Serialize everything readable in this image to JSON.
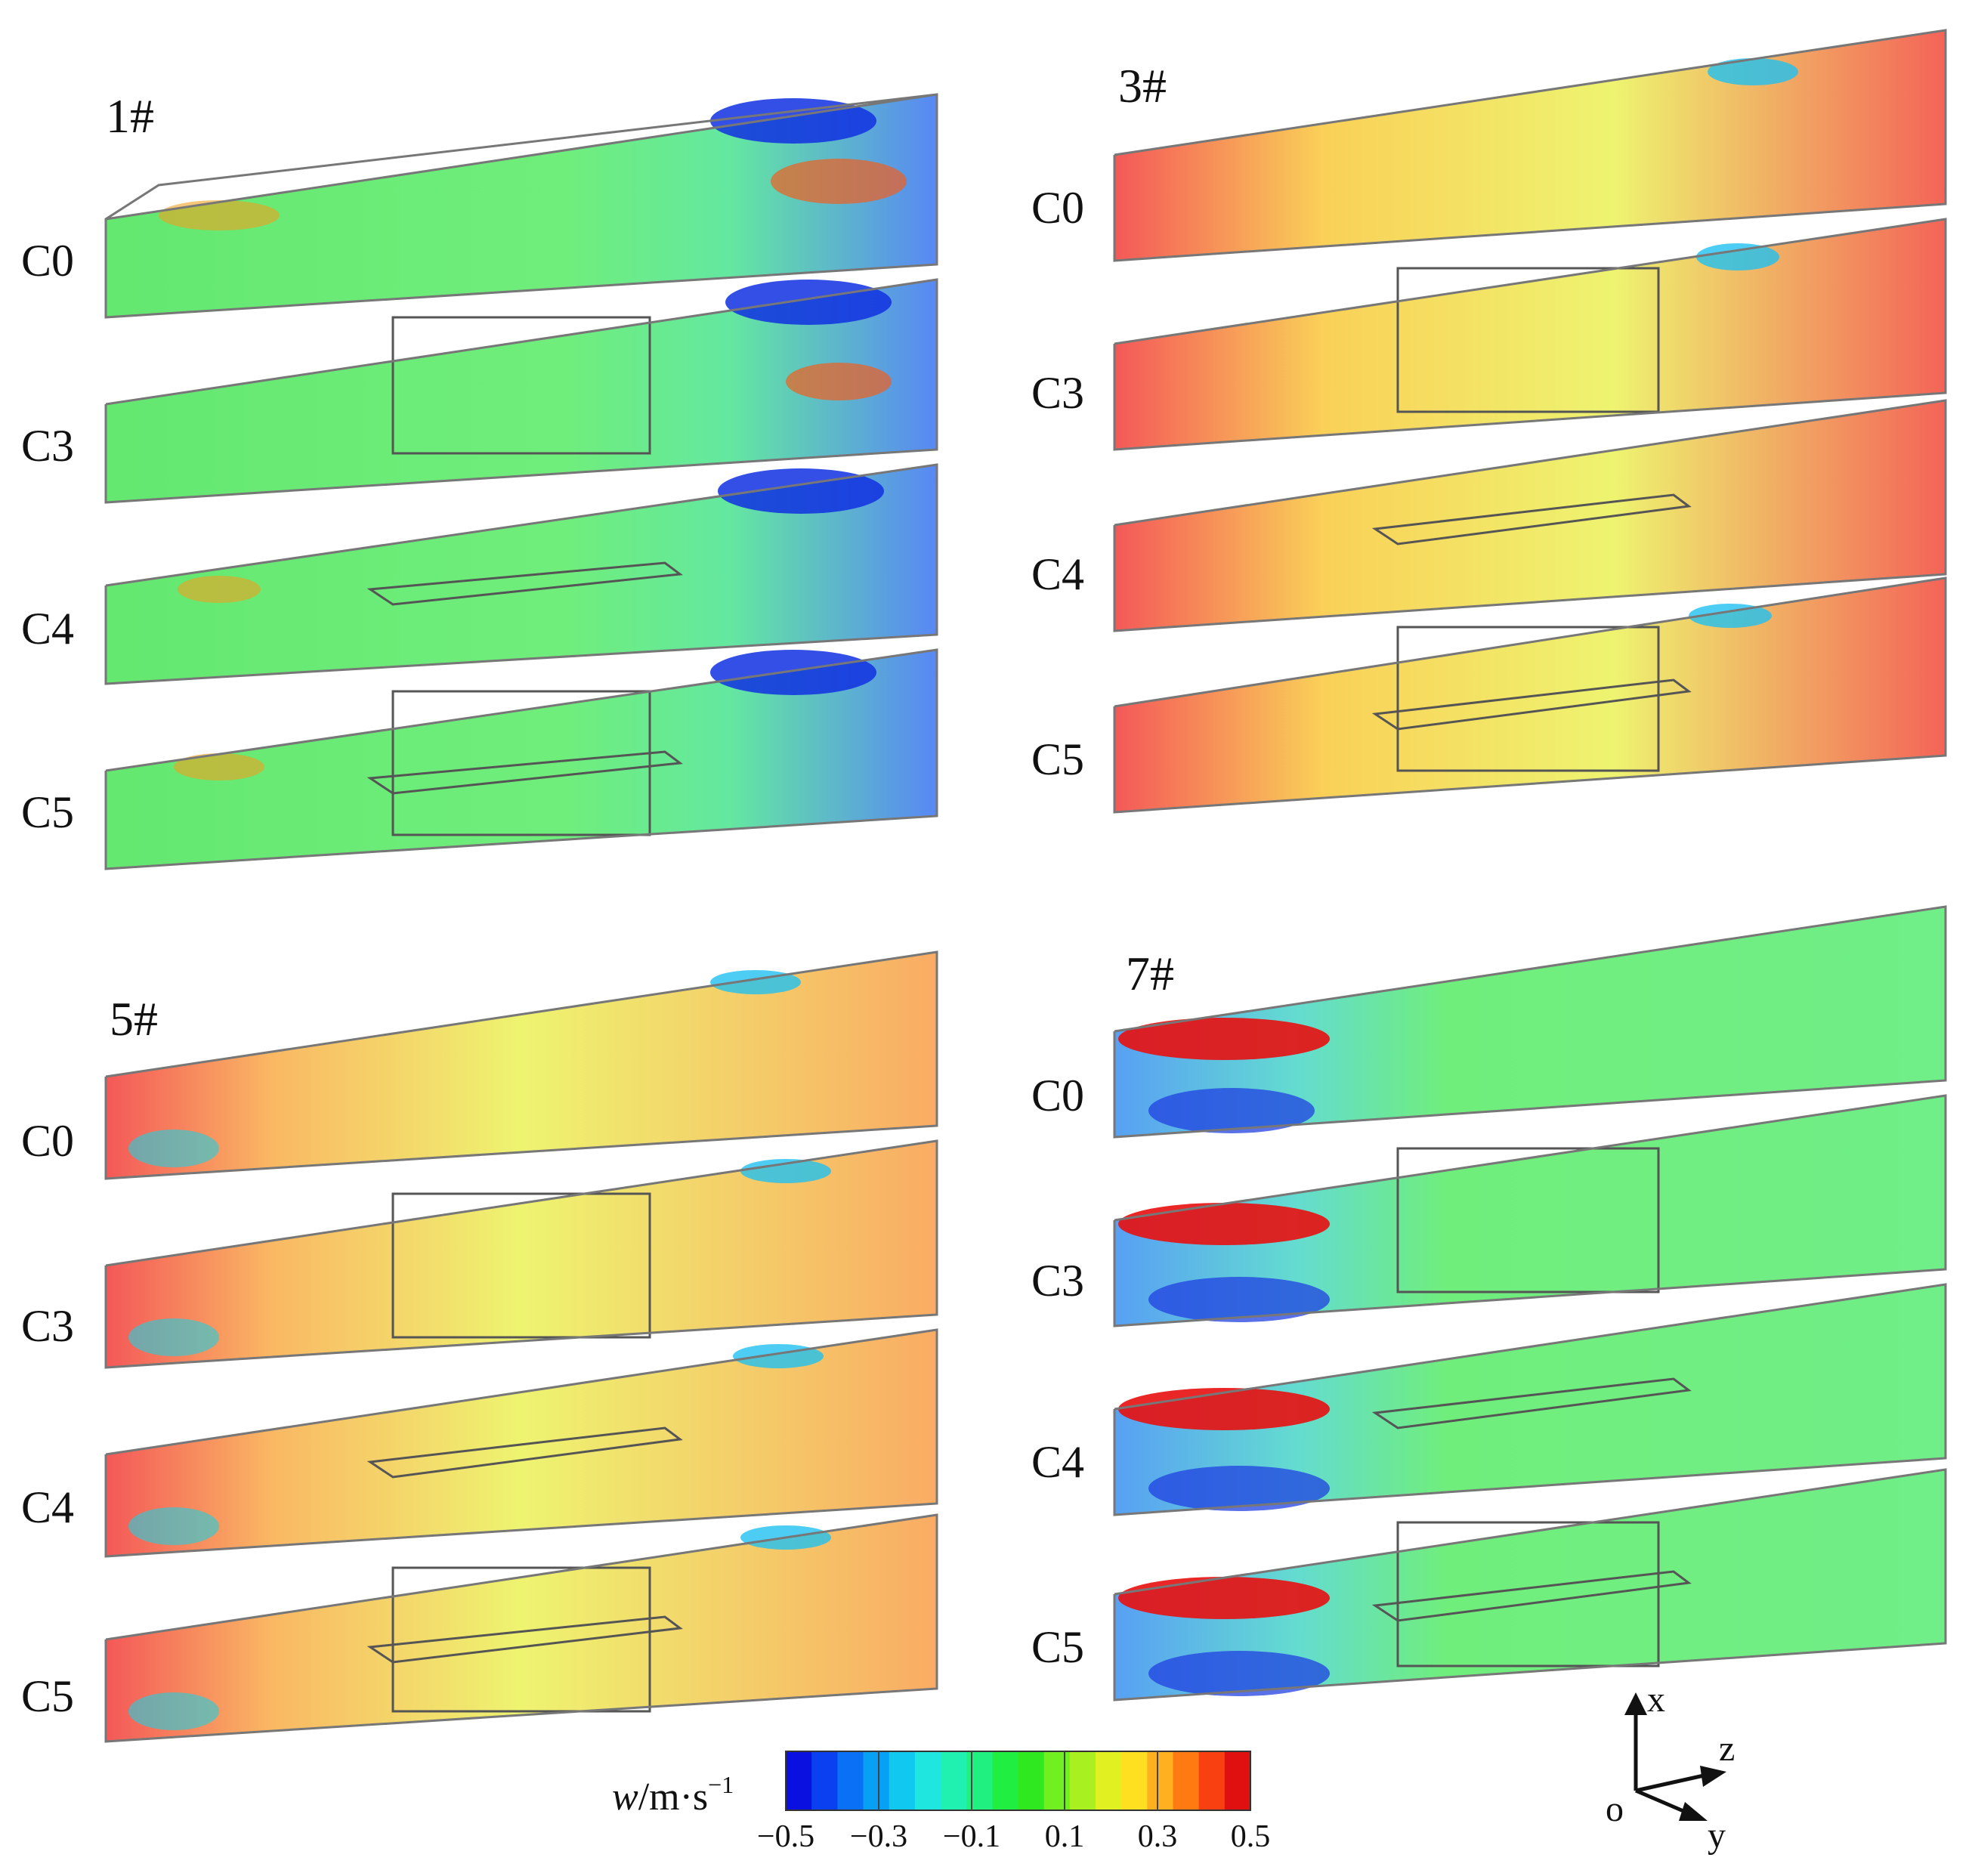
{
  "panels": [
    {
      "label": "1#",
      "cases": [
        "C0",
        "C3",
        "C4",
        "C5"
      ],
      "left_color": "green",
      "right_color": "blue",
      "mid_color": "green"
    },
    {
      "label": "3#",
      "cases": [
        "C0",
        "C3",
        "C4",
        "C5"
      ],
      "left_color": "red",
      "right_color": "red",
      "mid_color": "yellow"
    },
    {
      "label": "5#",
      "cases": [
        "C0",
        "C3",
        "C4",
        "C5"
      ],
      "left_color": "red",
      "right_color": "orange",
      "mid_color": "yellow"
    },
    {
      "label": "7#",
      "cases": [
        "C0",
        "C3",
        "C4",
        "C5"
      ],
      "left_color": "blue",
      "right_color": "green",
      "mid_color": "green"
    }
  ],
  "colorbar": {
    "title_var": "w",
    "title_unit": "/m·s",
    "title_exp": "−1",
    "ticks": [
      "−0.5",
      "−0.3",
      "−0.1",
      "0.1",
      "0.3",
      "0.5"
    ],
    "min": -0.5,
    "max": 0.5,
    "colors": [
      "#0a10e0",
      "#0a40f0",
      "#0a70f5",
      "#08a0f5",
      "#10c8f0",
      "#20e6e0",
      "#20f0b0",
      "#20f080",
      "#20ee40",
      "#30e820",
      "#70f020",
      "#a8f020",
      "#e0f020",
      "#ffe020",
      "#ffb020",
      "#ff7a10",
      "#f84010",
      "#e01010"
    ]
  },
  "axes": {
    "x": "x",
    "y": "y",
    "z": "z",
    "origin": "o"
  }
}
